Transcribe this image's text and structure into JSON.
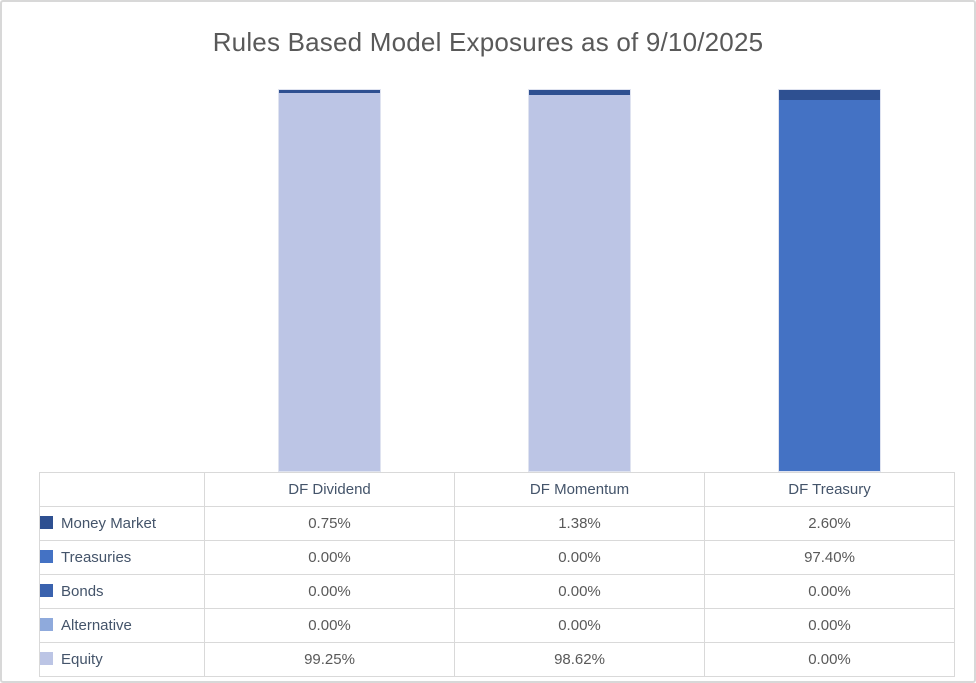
{
  "title": "Rules Based Model Exposures as of 9/10/2025",
  "chart_data": {
    "type": "bar",
    "subtype": "stacked-100-percent",
    "title": "Rules Based Model Exposures as of 9/10/2025",
    "categories": [
      "DF Dividend",
      "DF Momentum",
      "DF Treasury"
    ],
    "series": [
      {
        "name": "Money Market",
        "color": "#2E5091",
        "values": [
          0.75,
          1.38,
          2.6
        ]
      },
      {
        "name": "Treasuries",
        "color": "#4472C4",
        "values": [
          0.0,
          0.0,
          97.4
        ]
      },
      {
        "name": "Bonds",
        "color": "#3A62AE",
        "values": [
          0.0,
          0.0,
          0.0
        ]
      },
      {
        "name": "Alternative",
        "color": "#8FAADC",
        "values": [
          0.0,
          0.0,
          0.0
        ]
      },
      {
        "name": "Equity",
        "color": "#BCC5E5",
        "values": [
          99.25,
          98.62,
          0.0
        ]
      }
    ],
    "stack_order_top_to_bottom": [
      "Money Market",
      "Treasuries",
      "Bonds",
      "Alternative",
      "Equity"
    ],
    "ylim": [
      0,
      100
    ],
    "grid": false,
    "axes_visible": false,
    "legend_position": "data-table-left-column"
  },
  "table": {
    "corner": "",
    "headers": [
      "DF Dividend",
      "DF Momentum",
      "DF Treasury"
    ],
    "rows": [
      {
        "label": "Money Market",
        "values": [
          "0.75%",
          "1.38%",
          "2.60%"
        ]
      },
      {
        "label": "Treasuries",
        "values": [
          "0.00%",
          "0.00%",
          "97.40%"
        ]
      },
      {
        "label": "Bonds",
        "values": [
          "0.00%",
          "0.00%",
          "0.00%"
        ]
      },
      {
        "label": "Alternative",
        "values": [
          "0.00%",
          "0.00%",
          "0.00%"
        ]
      },
      {
        "label": "Equity",
        "values": [
          "99.25%",
          "98.62%",
          "0.00%"
        ]
      }
    ]
  }
}
